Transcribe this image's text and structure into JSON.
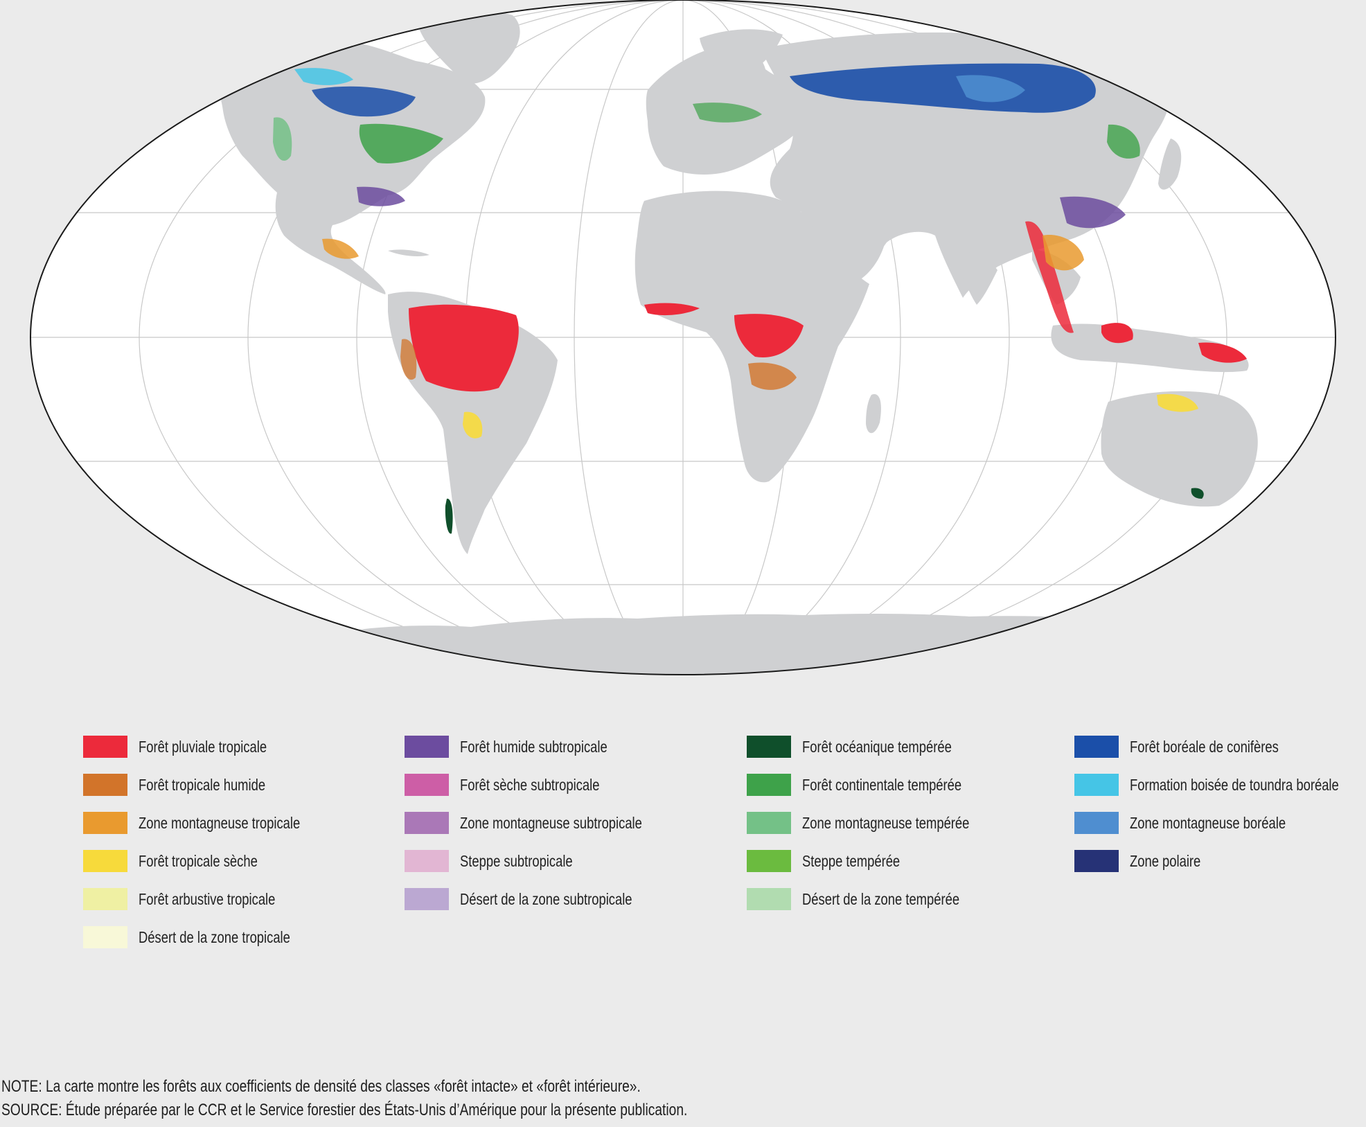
{
  "map": {
    "projection": "robinson",
    "ocean_color": "#ffffff",
    "land_color": "#cfd0d2",
    "graticule_color": "#c8c8c8"
  },
  "legend": {
    "columns": [
      [
        {
          "label": "Forêt pluviale tropicale",
          "color": "#ec2a3b"
        },
        {
          "label": "Forêt tropicale humide",
          "color": "#d2742a"
        },
        {
          "label": "Zone montagneuse tropicale",
          "color": "#e99a2f"
        },
        {
          "label": "Forêt tropicale sèche",
          "color": "#f7da3b"
        },
        {
          "label": "Forêt arbustive tropicale",
          "color": "#eff0a3"
        },
        {
          "label": "Désert de la zone tropicale",
          "color": "#f8f8d8"
        }
      ],
      [
        {
          "label": "Forêt humide subtropicale",
          "color": "#6c4c9f"
        },
        {
          "label": "Forêt sèche subtropicale",
          "color": "#cd5ea6"
        },
        {
          "label": "Zone montagneuse subtropicale",
          "color": "#aa78b7"
        },
        {
          "label": "Steppe subtropicale",
          "color": "#e2b6d3"
        },
        {
          "label": "Désert de la zone subtropicale",
          "color": "#bba8d2"
        }
      ],
      [
        {
          "label": "Forêt océanique tempérée",
          "color": "#0f4f2b"
        },
        {
          "label": "Forêt continentale tempérée",
          "color": "#3ea24a"
        },
        {
          "label": "Zone montagneuse tempérée",
          "color": "#74c187"
        },
        {
          "label": "Steppe tempérée",
          "color": "#6bbb3f"
        },
        {
          "label": "Désert de la zone tempérée",
          "color": "#b1dcb0"
        }
      ],
      [
        {
          "label": "Forêt boréale de conifères",
          "color": "#1b4fa9"
        },
        {
          "label": "Formation boisée de toundra boréale",
          "color": "#45c5e6"
        },
        {
          "label": "Zone montagneuse boréale",
          "color": "#4f8ed0"
        },
        {
          "label": "Zone polaire",
          "color": "#263276"
        }
      ]
    ]
  },
  "note": "NOTE: La carte montre les forêts aux coefficients de densité des classes «forêt intacte» et «forêt intérieure».",
  "source": "SOURCE: Étude préparée par le CCR et le Service forestier des États-Unis d’Amérique pour la présente publication."
}
